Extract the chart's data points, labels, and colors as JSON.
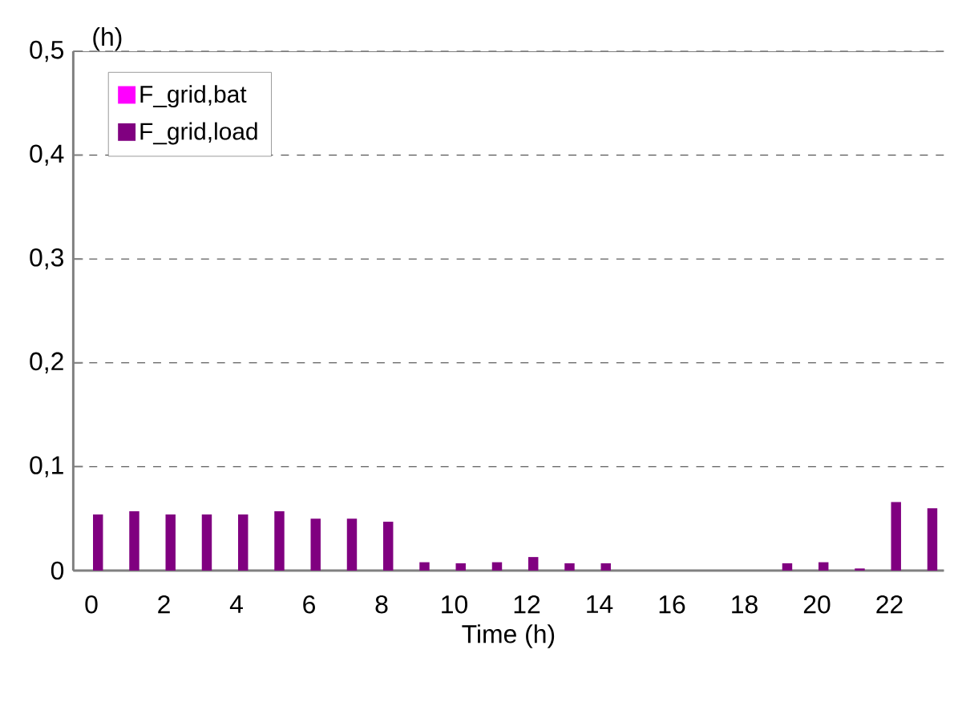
{
  "chart_data": {
    "type": "bar",
    "xlabel": "Time (h)",
    "ylabel": "(h)",
    "categories": [
      "0",
      null,
      "2",
      null,
      "4",
      null,
      "6",
      null,
      "8",
      null,
      "10",
      null,
      "12",
      null,
      "14",
      null,
      "16",
      null,
      "18",
      null,
      "20",
      null,
      "22",
      null
    ],
    "series": [
      {
        "name": "F_grid,bat",
        "color": "#ff00ff",
        "values": [
          0,
          0,
          0,
          0,
          0,
          0,
          0,
          0,
          0,
          0,
          0,
          0,
          0,
          0,
          0,
          0,
          0,
          0,
          0,
          0,
          0,
          0,
          0,
          0
        ]
      },
      {
        "name": "F_grid,load",
        "color": "#800080",
        "values": [
          0.054,
          0.057,
          0.054,
          0.054,
          0.054,
          0.057,
          0.05,
          0.05,
          0.047,
          0.008,
          0.007,
          0.008,
          0.013,
          0.007,
          0.007,
          0,
          0,
          0,
          0,
          0.007,
          0.008,
          0.002,
          0.066,
          0.06
        ]
      }
    ],
    "ylim": [
      0,
      0.5
    ],
    "yticks": [
      {
        "value": 0,
        "label": "0"
      },
      {
        "value": 0.1,
        "label": "0,1"
      },
      {
        "value": 0.2,
        "label": "0,2"
      },
      {
        "value": 0.3,
        "label": "0,3"
      },
      {
        "value": 0.4,
        "label": "0,4"
      },
      {
        "value": 0.5,
        "label": "0,5"
      }
    ],
    "grid": "y",
    "legend": "top left"
  }
}
